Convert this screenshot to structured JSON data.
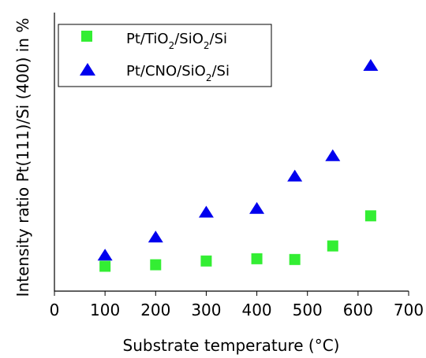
{
  "chart_data": {
    "type": "scatter",
    "xlabel": "Substrate temperature (°C)",
    "ylabel": "Intensity ratio Pt(111)/Si (400) in %",
    "xlim": [
      0,
      700
    ],
    "xticks": [
      0,
      100,
      200,
      300,
      400,
      500,
      600,
      700
    ],
    "yticks_visible": false,
    "grid": false,
    "legend_position": "top-left",
    "series": [
      {
        "name_parts": [
          "Pt/TiO",
          "2",
          "/SiO",
          "2",
          "/Si"
        ],
        "marker": "square",
        "color": "#33ee33",
        "x": [
          100,
          200,
          300,
          400,
          475,
          550,
          625
        ],
        "y": [
          0.33,
          0.35,
          0.4,
          0.43,
          0.42,
          0.6,
          1.0
        ]
      },
      {
        "name_parts": [
          "Pt/CNO/SiO",
          "2",
          "/Si"
        ],
        "marker": "triangle",
        "color": "#0000ee",
        "x": [
          100,
          200,
          300,
          400,
          475,
          550,
          625
        ],
        "y": [
          0.48,
          0.72,
          1.05,
          1.1,
          1.53,
          1.8,
          3.0
        ]
      }
    ]
  }
}
